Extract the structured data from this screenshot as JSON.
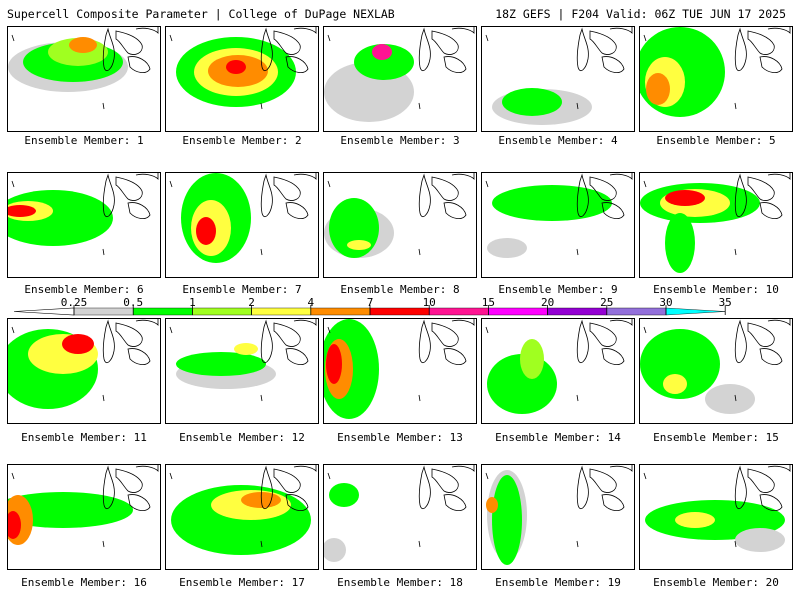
{
  "header": {
    "title_left": "Supercell Composite Parameter | College of DuPage NEXLAB",
    "title_right": "18Z GEFS | F204 Valid: 06Z TUE JUN 17 2025"
  },
  "legend": {
    "ticks": [
      "0.25",
      "0.5",
      "1",
      "2",
      "4",
      "7",
      "10",
      "15",
      "20",
      "25",
      "30",
      "35"
    ],
    "colors": [
      "#d3d3d3",
      "#00ff00",
      "#a0ff20",
      "#ffff40",
      "#ff8c00",
      "#ff0000",
      "#ff1493",
      "#ff00ff",
      "#9400d3",
      "#9370db",
      "#00ffff"
    ]
  },
  "members": [
    {
      "caption": "Ensemble Member: 1"
    },
    {
      "caption": "Ensemble Member: 2"
    },
    {
      "caption": "Ensemble Member: 3"
    },
    {
      "caption": "Ensemble Member: 4"
    },
    {
      "caption": "Ensemble Member: 5"
    },
    {
      "caption": "Ensemble Member: 6"
    },
    {
      "caption": "Ensemble Member: 7"
    },
    {
      "caption": "Ensemble Member: 8"
    },
    {
      "caption": "Ensemble Member: 9"
    },
    {
      "caption": "Ensemble Member: 10"
    },
    {
      "caption": "Ensemble Member: 11"
    },
    {
      "caption": "Ensemble Member: 12"
    },
    {
      "caption": "Ensemble Member: 13"
    },
    {
      "caption": "Ensemble Member: 14"
    },
    {
      "caption": "Ensemble Member: 15"
    },
    {
      "caption": "Ensemble Member: 16"
    },
    {
      "caption": "Ensemble Member: 17"
    },
    {
      "caption": "Ensemble Member: 18"
    },
    {
      "caption": "Ensemble Member: 19"
    },
    {
      "caption": "Ensemble Member: 20"
    }
  ]
}
